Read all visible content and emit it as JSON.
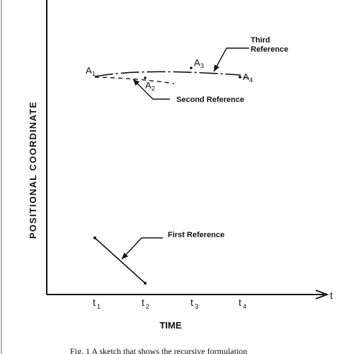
{
  "axes": {
    "y_label": "POSITIONAL COORDINATE",
    "x_label": "TIME",
    "x_end_label": "t",
    "ticks": [
      {
        "base": "t",
        "sub": "1"
      },
      {
        "base": "t",
        "sub": "2"
      },
      {
        "base": "t",
        "sub": "3"
      },
      {
        "base": "t",
        "sub": "4"
      }
    ]
  },
  "points": [
    {
      "base": "A",
      "sub": "1"
    },
    {
      "base": "A",
      "sub": "2"
    },
    {
      "base": "A",
      "sub": "3"
    },
    {
      "base": "A",
      "sub": "4"
    }
  ],
  "annotations": {
    "third_reference_line1": "Third",
    "third_reference_line2": "Reference",
    "second_reference": "Second Reference",
    "first_reference": "First Reference"
  },
  "caption": "Fig. 1    A sketch that shows the recursive formulation"
}
